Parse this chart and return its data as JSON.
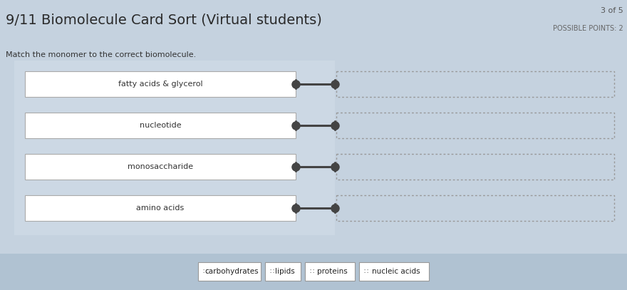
{
  "title": "9/11 Biomolecule Card Sort (Virtual students)",
  "page_indicator": "3 of 5",
  "possible_points": "POSSIBLE POINTS: 2",
  "instruction": "Match the monomer to the correct biomolecule.",
  "background_color": "#c5d2df",
  "bottom_panel_bg": "#b0c2d2",
  "box_bg": "#ffffff",
  "box_border": "#aaaaaa",
  "dashed_border": "#999999",
  "monomers": [
    "fatty acids & glycerol",
    "nucleotide",
    "monosaccharide",
    "amino acids"
  ],
  "bottom_labels": [
    "carbohydrates",
    "lipids",
    "proteins",
    "nucleic acids"
  ],
  "connector_color": "#444444",
  "title_fontsize": 14,
  "instruction_fontsize": 8,
  "monomer_fontsize": 8,
  "label_fontsize": 7.5,
  "page_fontsize": 8,
  "points_fontsize": 7
}
